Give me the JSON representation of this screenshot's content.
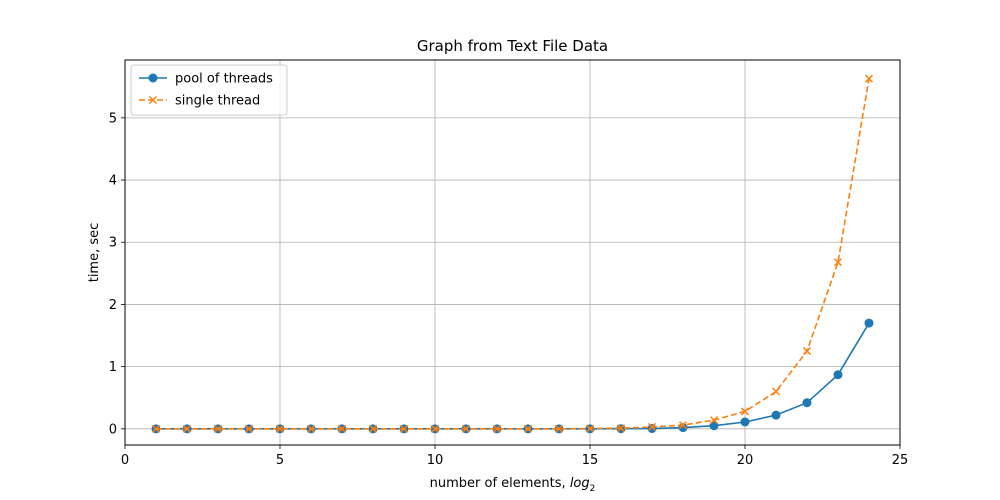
{
  "chart_data": {
    "type": "line",
    "title": "Graph from Text File Data",
    "xlabel_prefix": "number of elements, ",
    "xlabel_log": "log",
    "xlabel_sub": "2",
    "ylabel": "time, sec",
    "xlim": [
      0,
      25
    ],
    "ylim": [
      -0.26,
      5.93
    ],
    "xticks": [
      0,
      5,
      10,
      15,
      20,
      25
    ],
    "yticks": [
      0,
      1,
      2,
      3,
      4,
      5
    ],
    "grid": true,
    "legend_position": "top-left",
    "x": [
      1,
      2,
      3,
      4,
      5,
      6,
      7,
      8,
      9,
      10,
      11,
      12,
      13,
      14,
      15,
      16,
      17,
      18,
      19,
      20,
      21,
      22,
      23,
      24
    ],
    "series": [
      {
        "name": "pool of threads",
        "color": "#1f77b4",
        "marker": "circle",
        "linestyle": "solid",
        "values": [
          0,
          0,
          0,
          0,
          0,
          0,
          0,
          0,
          0,
          0,
          0,
          0,
          0,
          0,
          0,
          0.002,
          0.005,
          0.02,
          0.05,
          0.11,
          0.22,
          0.42,
          0.87,
          1.7
        ]
      },
      {
        "name": "single thread",
        "color": "#ff7f0e",
        "marker": "x",
        "linestyle": "dashed",
        "values": [
          0,
          0,
          0,
          0,
          0,
          0,
          0,
          0,
          0,
          0,
          0,
          0,
          0,
          0,
          0.005,
          0.01,
          0.03,
          0.06,
          0.14,
          0.28,
          0.6,
          1.25,
          2.68,
          5.63
        ]
      }
    ]
  }
}
